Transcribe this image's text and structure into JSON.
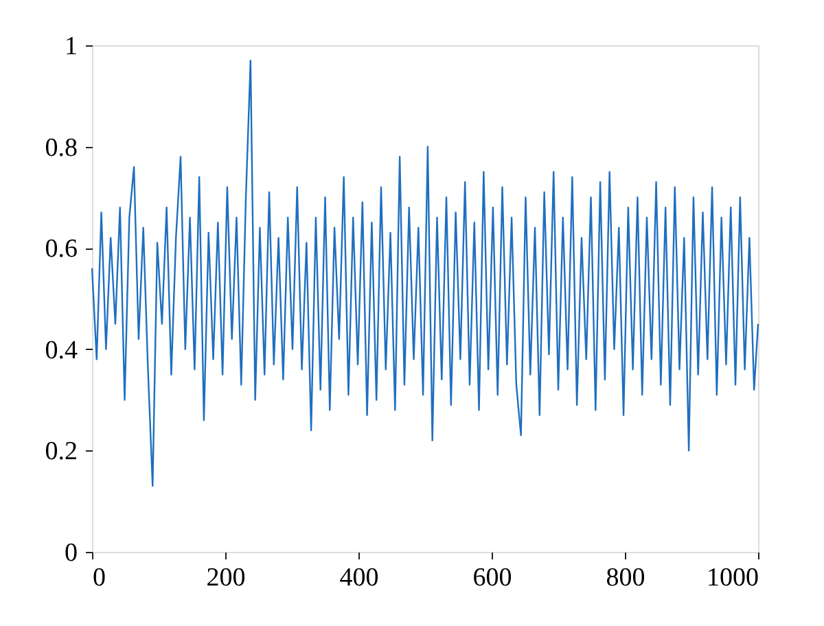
{
  "chart_data": {
    "type": "line",
    "color": "#1f6fbf",
    "line_style": "solid",
    "marker": "none",
    "grid": false,
    "x": [
      0,
      7,
      14,
      21,
      28,
      35,
      42,
      49,
      56,
      63,
      70,
      77,
      84,
      91,
      98,
      105,
      112,
      119,
      126,
      133,
      140,
      147,
      154,
      161,
      168,
      175,
      182,
      189,
      196,
      203,
      210,
      217,
      224,
      231,
      238,
      245,
      252,
      259,
      266,
      273,
      280,
      287,
      294,
      301,
      308,
      315,
      322,
      329,
      336,
      343,
      350,
      357,
      364,
      371,
      378,
      385,
      392,
      399,
      406,
      413,
      420,
      427,
      434,
      441,
      448,
      455,
      462,
      469,
      476,
      483,
      490,
      497,
      504,
      511,
      518,
      525,
      532,
      539,
      546,
      553,
      560,
      567,
      574,
      581,
      588,
      595,
      602,
      609,
      616,
      623,
      630,
      637,
      644,
      651,
      658,
      665,
      672,
      679,
      686,
      693,
      700,
      707,
      714,
      721,
      728,
      735,
      742,
      749,
      756,
      763,
      770,
      777,
      784,
      791,
      798,
      805,
      812,
      819,
      826,
      833,
      840,
      847,
      854,
      861,
      868,
      875,
      882,
      889,
      896,
      903,
      910,
      917,
      924,
      931,
      938,
      945,
      952,
      959,
      966,
      973,
      980,
      987,
      994,
      1000
    ],
    "values": [
      0.56,
      0.38,
      0.67,
      0.4,
      0.62,
      0.45,
      0.68,
      0.3,
      0.66,
      0.76,
      0.42,
      0.64,
      0.36,
      0.13,
      0.61,
      0.45,
      0.68,
      0.35,
      0.62,
      0.78,
      0.4,
      0.66,
      0.36,
      0.74,
      0.26,
      0.63,
      0.38,
      0.65,
      0.35,
      0.72,
      0.42,
      0.66,
      0.33,
      0.7,
      0.97,
      0.3,
      0.64,
      0.35,
      0.71,
      0.37,
      0.62,
      0.34,
      0.66,
      0.4,
      0.72,
      0.36,
      0.61,
      0.24,
      0.66,
      0.32,
      0.7,
      0.28,
      0.64,
      0.42,
      0.74,
      0.31,
      0.66,
      0.37,
      0.69,
      0.27,
      0.65,
      0.3,
      0.72,
      0.36,
      0.63,
      0.28,
      0.78,
      0.33,
      0.68,
      0.38,
      0.64,
      0.31,
      0.8,
      0.22,
      0.66,
      0.34,
      0.7,
      0.29,
      0.67,
      0.38,
      0.73,
      0.33,
      0.65,
      0.28,
      0.75,
      0.36,
      0.68,
      0.31,
      0.72,
      0.37,
      0.66,
      0.33,
      0.23,
      0.7,
      0.35,
      0.64,
      0.27,
      0.71,
      0.39,
      0.75,
      0.32,
      0.66,
      0.36,
      0.74,
      0.29,
      0.62,
      0.38,
      0.7,
      0.28,
      0.73,
      0.34,
      0.75,
      0.4,
      0.64,
      0.27,
      0.68,
      0.36,
      0.7,
      0.31,
      0.66,
      0.38,
      0.73,
      0.33,
      0.68,
      0.29,
      0.72,
      0.36,
      0.62,
      0.2,
      0.7,
      0.35,
      0.67,
      0.38,
      0.72,
      0.31,
      0.66,
      0.37,
      0.68,
      0.33,
      0.7,
      0.36,
      0.62,
      0.32,
      0.45
    ],
    "xlim": [
      0,
      1000
    ],
    "xticks": [
      0,
      200,
      400,
      600,
      800,
      1000
    ],
    "ylim": [
      0,
      1
    ],
    "yticks": [
      0,
      0.2,
      0.4,
      0.6,
      0.8,
      1
    ]
  }
}
